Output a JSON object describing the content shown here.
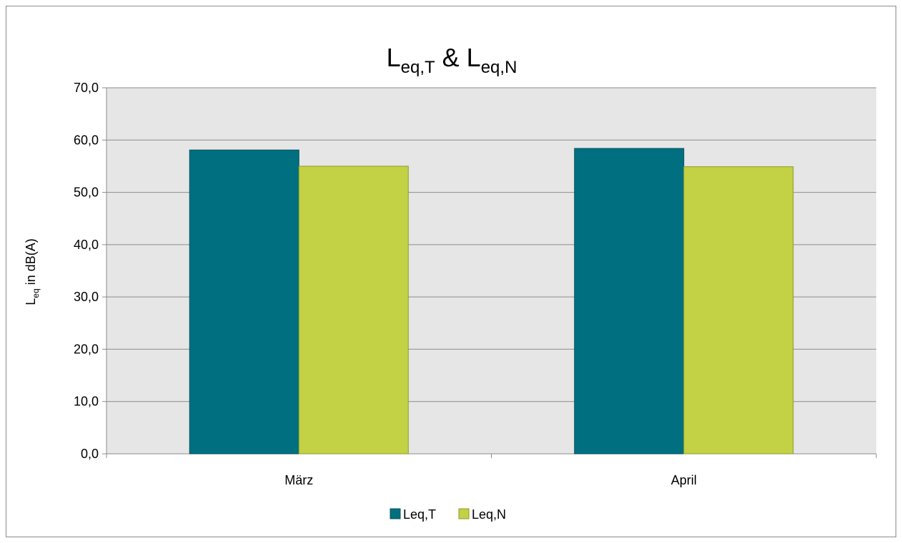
{
  "colors": {
    "plot_background": "#e6e6e6",
    "gridline": "#8c8c8c",
    "series_1": "#007080",
    "series_1_border": "#05505a",
    "series_2": "#c3d145",
    "series_2_border": "#8e9a2a"
  },
  "chart_data": {
    "type": "bar",
    "title": {
      "part1_base": "L",
      "part1_sub": "eq,T",
      "joiner": " & ",
      "part2_base": "L",
      "part2_sub": "eq,N"
    },
    "ylabel": {
      "base": "L",
      "sub": "eq",
      "rest": " in dB(A)"
    },
    "xlabel": "",
    "categories": [
      "März",
      "April"
    ],
    "series": [
      {
        "name": "Leq,T",
        "values": [
          58.1,
          58.4
        ]
      },
      {
        "name": "Leq,N",
        "values": [
          55.0,
          54.9
        ]
      }
    ],
    "ylim": [
      0,
      70
    ],
    "yticks": [
      "0,0",
      "10,0",
      "20,0",
      "30,0",
      "40,0",
      "50,0",
      "60,0",
      "70,0"
    ],
    "grid": true,
    "legend_position": "bottom"
  }
}
